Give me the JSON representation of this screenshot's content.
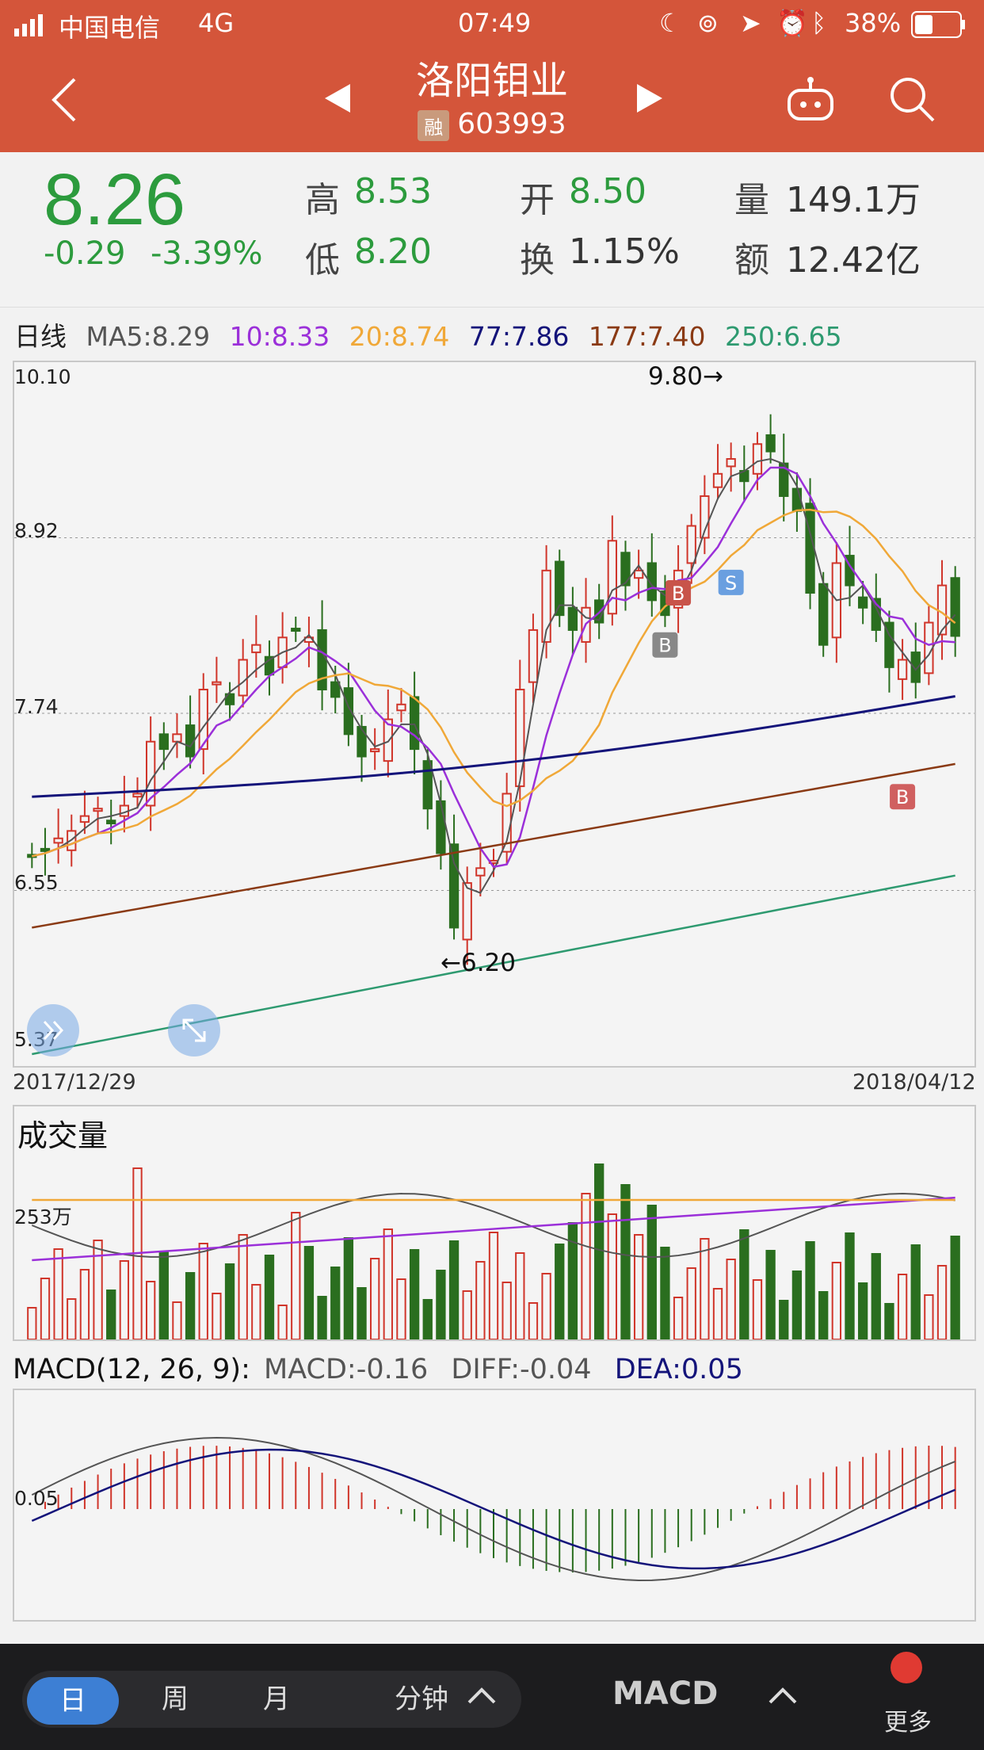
{
  "status": {
    "carrier": "中国电信",
    "network": "4G",
    "time": "07:49",
    "battery": "38%"
  },
  "nav": {
    "title": "洛阳钼业",
    "badge": "融",
    "code": "603993"
  },
  "quote": {
    "price": "8.26",
    "change": "-0.29",
    "change_pct": "-3.39%",
    "high_label": "高",
    "high": "8.53",
    "low_label": "低",
    "low": "8.20",
    "open_label": "开",
    "open": "8.50",
    "turnover_label": "换",
    "turnover": "1.15%",
    "volume_label": "量",
    "volume": "149.1万",
    "amount_label": "额",
    "amount": "12.42亿"
  },
  "ma_legend": {
    "period": "日线",
    "ma5": "MA5:8.29",
    "ma10": "10:8.33",
    "ma20": "20:8.74",
    "ma77": "77:7.86",
    "ma177": "177:7.40",
    "ma250": "250:6.65"
  },
  "price_axis": {
    "p1": "10.10",
    "p2": "8.92",
    "p3": "7.74",
    "p4": "6.55",
    "p5": "5.37"
  },
  "annotations": {
    "high_mark": "9.80→",
    "low_mark": "←6.20",
    "buy": "B",
    "sell": "S"
  },
  "dates": {
    "start": "2017/12/29",
    "end": "2018/04/12"
  },
  "volume_panel": {
    "title": "成交量",
    "axis": "253万"
  },
  "macd_panel": {
    "title": "MACD(12, 26, 9):",
    "macd": "MACD:-0.16",
    "diff": "DIFF:-0.04",
    "dea": "DEA:0.05",
    "axis": "0.05"
  },
  "tabbar": {
    "day": "日",
    "week": "周",
    "month": "月",
    "minute": "分钟",
    "indicator": "MACD",
    "more": "更多"
  },
  "colors": {
    "up": "#d0352a",
    "down": "#2a6e1f",
    "ma5": "#555555",
    "ma10": "#9b30d9",
    "ma20": "#f0a838",
    "ma77": "#14147a",
    "ma177": "#8a3a14",
    "ma250": "#2e9a70",
    "accent": "#d4553a"
  },
  "chart_data": {
    "type": "candlestick",
    "title": "日线",
    "x_start": "2017/12/29",
    "x_end": "2018/04/12",
    "ylim": [
      5.37,
      10.1
    ],
    "y_ticks": [
      10.1,
      8.92,
      7.74,
      6.55,
      5.37
    ],
    "high": 9.8,
    "low": 6.2,
    "closes": [
      6.78,
      6.82,
      6.9,
      6.95,
      7.05,
      7.1,
      7.0,
      7.12,
      7.2,
      7.55,
      7.5,
      7.6,
      7.45,
      7.9,
      7.95,
      7.8,
      8.1,
      8.2,
      8.0,
      8.25,
      8.3,
      8.25,
      7.9,
      7.85,
      7.6,
      7.45,
      7.5,
      7.7,
      7.8,
      7.5,
      7.1,
      6.8,
      6.3,
      6.6,
      6.7,
      6.75,
      7.2,
      7.9,
      8.3,
      8.7,
      8.4,
      8.3,
      8.45,
      8.35,
      8.9,
      8.6,
      8.7,
      8.5,
      8.4,
      8.7,
      9.0,
      9.2,
      9.35,
      9.45,
      9.3,
      9.55,
      9.5,
      9.2,
      9.1,
      8.55,
      8.2,
      8.75,
      8.6,
      8.45,
      8.3,
      8.05,
      8.1,
      7.95,
      8.35,
      8.6,
      8.26
    ],
    "volume_axis": "253万",
    "macd": {
      "macd": -0.16,
      "diff": -0.04,
      "dea": 0.05
    }
  }
}
